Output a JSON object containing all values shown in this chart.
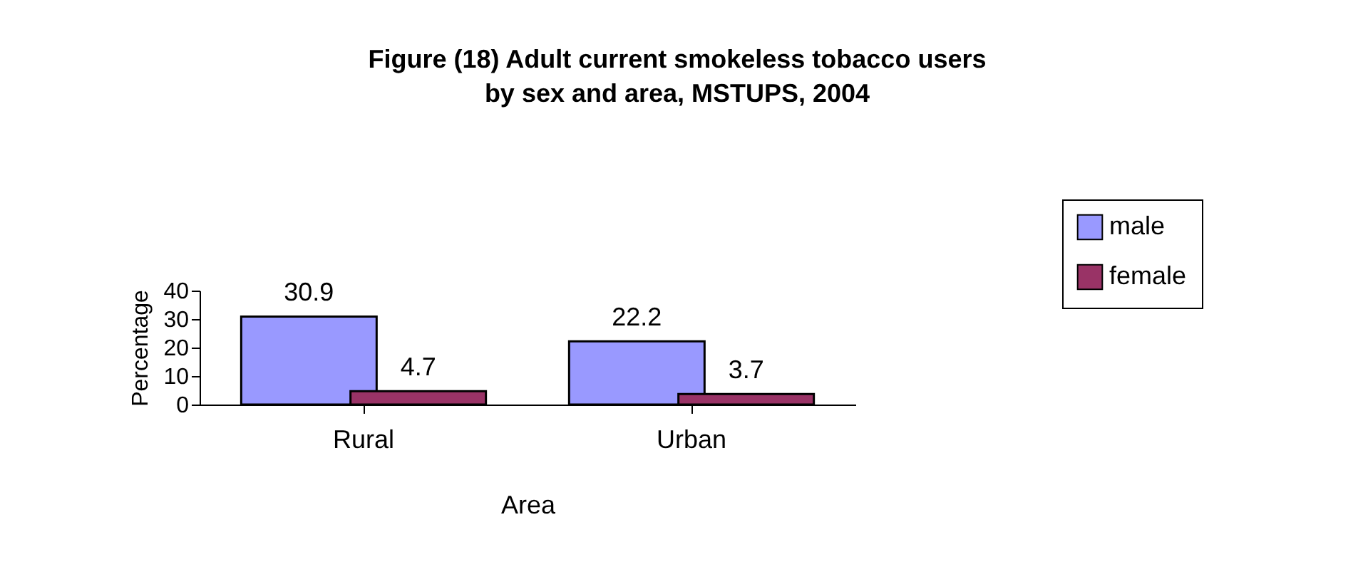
{
  "chart_data": {
    "type": "bar",
    "title": "Figure (18) Adult current smokeless tobacco users by sex and area, MSTUPS, 2004",
    "xlabel": "Area",
    "ylabel": "Percentage",
    "categories": [
      "Rural",
      "Urban"
    ],
    "series": [
      {
        "name": "male",
        "color": "#9999ff",
        "values": [
          30.9,
          22.2
        ]
      },
      {
        "name": "female",
        "color": "#993366",
        "values": [
          4.7,
          3.7
        ]
      }
    ],
    "ylim": [
      0,
      40
    ],
    "yticks": [
      0,
      10,
      20,
      30,
      40
    ],
    "data_labels": true,
    "legend": "top right",
    "grid": false
  }
}
